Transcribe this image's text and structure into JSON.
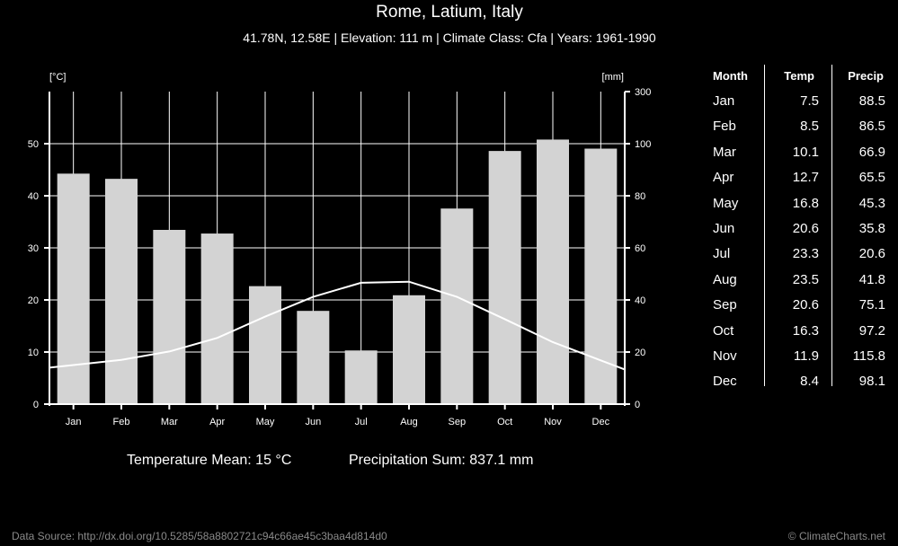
{
  "header": {
    "title": "Rome, Latium, Italy",
    "subtitle": "41.78N, 12.58E | Elevation: 111 m | Climate Class: Cfa | Years: 1961-1990"
  },
  "chart_data": {
    "type": "bar+line",
    "categories": [
      "Jan",
      "Feb",
      "Mar",
      "Apr",
      "May",
      "Jun",
      "Jul",
      "Aug",
      "Sep",
      "Oct",
      "Nov",
      "Dec"
    ],
    "series": [
      {
        "name": "Precip",
        "axis": "right",
        "type": "bar",
        "values": [
          88.5,
          86.5,
          66.9,
          65.5,
          45.3,
          35.8,
          20.6,
          41.8,
          75.1,
          97.2,
          115.8,
          98.1
        ]
      },
      {
        "name": "Temp",
        "axis": "left",
        "type": "line",
        "values": [
          7.5,
          8.5,
          10.1,
          12.7,
          16.8,
          20.6,
          23.3,
          23.5,
          20.6,
          16.3,
          11.9,
          8.4
        ]
      }
    ],
    "left_axis": {
      "label": "[°C]",
      "ylim": [
        0,
        60
      ],
      "ticks": [
        "0",
        "10",
        "20",
        "30",
        "40",
        "50"
      ]
    },
    "right_axis": {
      "label": "[mm]",
      "ylim": [
        0,
        300
      ],
      "ticks": [
        "0",
        "20",
        "40",
        "60",
        "80",
        "100",
        "300"
      ]
    },
    "grid": true,
    "colors": {
      "bars": "#d3d3d3",
      "line": "#ffffff",
      "background": "#000000",
      "grid": "#ffffff"
    }
  },
  "stats": {
    "temperature_mean": "Temperature Mean: 15 °C",
    "precipitation_sum": "Precipitation Sum: 837.1 mm"
  },
  "table": {
    "headers": [
      "Month",
      "Temp",
      "Precip"
    ],
    "rows": [
      [
        "Jan",
        "7.5",
        "88.5"
      ],
      [
        "Feb",
        "8.5",
        "86.5"
      ],
      [
        "Mar",
        "10.1",
        "66.9"
      ],
      [
        "Apr",
        "12.7",
        "65.5"
      ],
      [
        "May",
        "16.8",
        "45.3"
      ],
      [
        "Jun",
        "20.6",
        "35.8"
      ],
      [
        "Jul",
        "23.3",
        "20.6"
      ],
      [
        "Aug",
        "23.5",
        "41.8"
      ],
      [
        "Sep",
        "20.6",
        "75.1"
      ],
      [
        "Oct",
        "16.3",
        "97.2"
      ],
      [
        "Nov",
        "11.9",
        "115.8"
      ],
      [
        "Dec",
        "8.4",
        "98.1"
      ]
    ]
  },
  "footer": {
    "source": "Data Source: http://dx.doi.org/10.5285/58a8802721c94c66ae45c3baa4d814d0",
    "copyright": "© ClimateCharts.net"
  }
}
